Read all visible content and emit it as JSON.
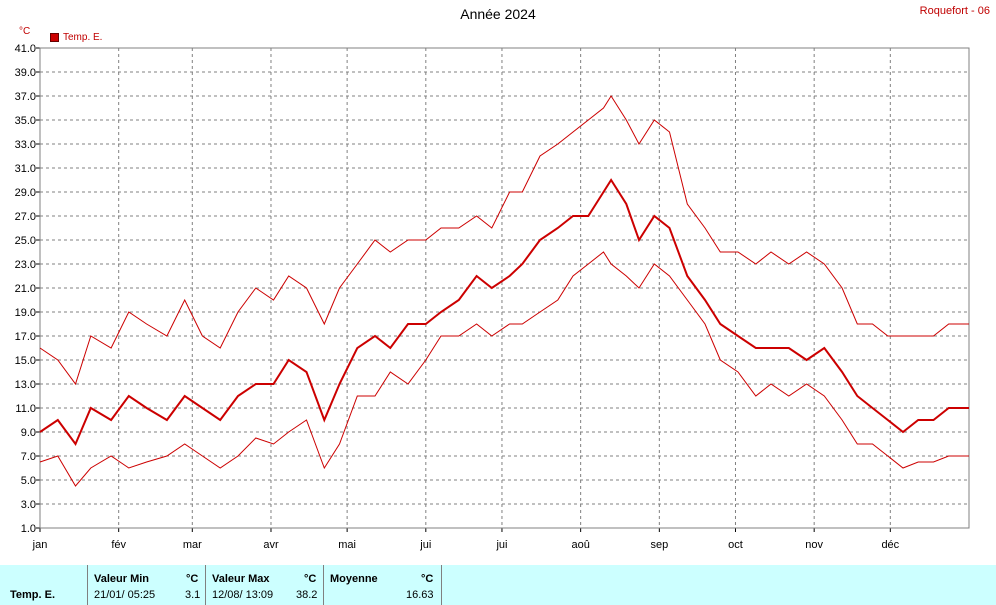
{
  "header": {
    "title": "Année 2024",
    "station": "Roquefort - 06"
  },
  "legend": {
    "unit": "°C",
    "series_label": "Temp. E."
  },
  "stats": {
    "row_label": "Temp. E.",
    "min": {
      "header": "Valeur Min",
      "unit": "°C",
      "datetime": "21/01/  05:25",
      "value": "3.1"
    },
    "max": {
      "header": "Valeur Max",
      "unit": "°C",
      "datetime": "12/08/  13:09",
      "value": "38.2"
    },
    "avg": {
      "header": "Moyenne",
      "unit": "°C",
      "value": "16.63"
    }
  },
  "colors": {
    "series": "#cc0000",
    "axis_text": "#c00000",
    "grid": "#808080",
    "stats_bg": "#ccffff"
  },
  "chart_data": {
    "type": "line",
    "title": "Année 2024",
    "ylabel": "°C",
    "ylim": [
      1.0,
      41.0
    ],
    "yticks": [
      "1.0",
      "3.0",
      "5.0",
      "7.0",
      "9.0",
      "11.0",
      "13.0",
      "15.0",
      "17.0",
      "19.0",
      "21.0",
      "23.0",
      "25.0",
      "27.0",
      "29.0",
      "31.0",
      "33.0",
      "35.0",
      "37.0",
      "39.0",
      "41.0"
    ],
    "xlim": [
      0,
      366
    ],
    "months": [
      "jan",
      "fév",
      "mar",
      "avr",
      "mai",
      "jui",
      "jui",
      "aoû",
      "sep",
      "oct",
      "nov",
      "déc"
    ],
    "month_starts": [
      0,
      31,
      60,
      91,
      121,
      152,
      182,
      213,
      244,
      274,
      305,
      335
    ],
    "series": [
      {
        "name": "Temp. E.",
        "x": [
          0,
          7,
          14,
          20,
          28,
          35,
          42,
          50,
          57,
          64,
          71,
          78,
          85,
          92,
          98,
          105,
          112,
          118,
          125,
          132,
          138,
          145,
          152,
          158,
          165,
          172,
          178,
          185,
          190,
          197,
          204,
          210,
          216,
          222,
          225,
          231,
          236,
          242,
          248,
          255,
          262,
          268,
          275,
          282,
          288,
          295,
          302,
          309,
          316,
          322,
          328,
          334,
          340,
          346,
          352,
          358,
          363,
          366
        ],
        "min": [
          6.5,
          7,
          4.5,
          6,
          7,
          6,
          6.5,
          7,
          8,
          7,
          6,
          7,
          8.5,
          8,
          9,
          10,
          6,
          8,
          12,
          12,
          14,
          13,
          15,
          17,
          17,
          18,
          17,
          18,
          18,
          19,
          20,
          22,
          23,
          24,
          23,
          22,
          21,
          23,
          22,
          20,
          18,
          15,
          14,
          12,
          13,
          12,
          13,
          12,
          10,
          8,
          8,
          7,
          6,
          6.5,
          6.5,
          7,
          7,
          7
        ],
        "mean": [
          9,
          10,
          8,
          11,
          10,
          12,
          11,
          10,
          12,
          11,
          10,
          12,
          13,
          13,
          15,
          14,
          10,
          13,
          16,
          17,
          16,
          18,
          18,
          19,
          20,
          22,
          21,
          22,
          23,
          25,
          26,
          27,
          27,
          29,
          30,
          28,
          25,
          27,
          26,
          22,
          20,
          18,
          17,
          16,
          16,
          16,
          15,
          16,
          14,
          12,
          11,
          10,
          9,
          10,
          10,
          11,
          11,
          11
        ],
        "max": [
          16,
          15,
          13,
          17,
          16,
          19,
          18,
          17,
          20,
          17,
          16,
          19,
          21,
          20,
          22,
          21,
          18,
          21,
          23,
          25,
          24,
          25,
          25,
          26,
          26,
          27,
          26,
          29,
          29,
          32,
          33,
          34,
          35,
          36,
          37,
          35,
          33,
          35,
          34,
          28,
          26,
          24,
          24,
          23,
          24,
          23,
          24,
          23,
          21,
          18,
          18,
          17,
          17,
          17,
          17,
          18,
          18,
          18
        ]
      }
    ],
    "grid": true,
    "legend_position": "top-left"
  }
}
